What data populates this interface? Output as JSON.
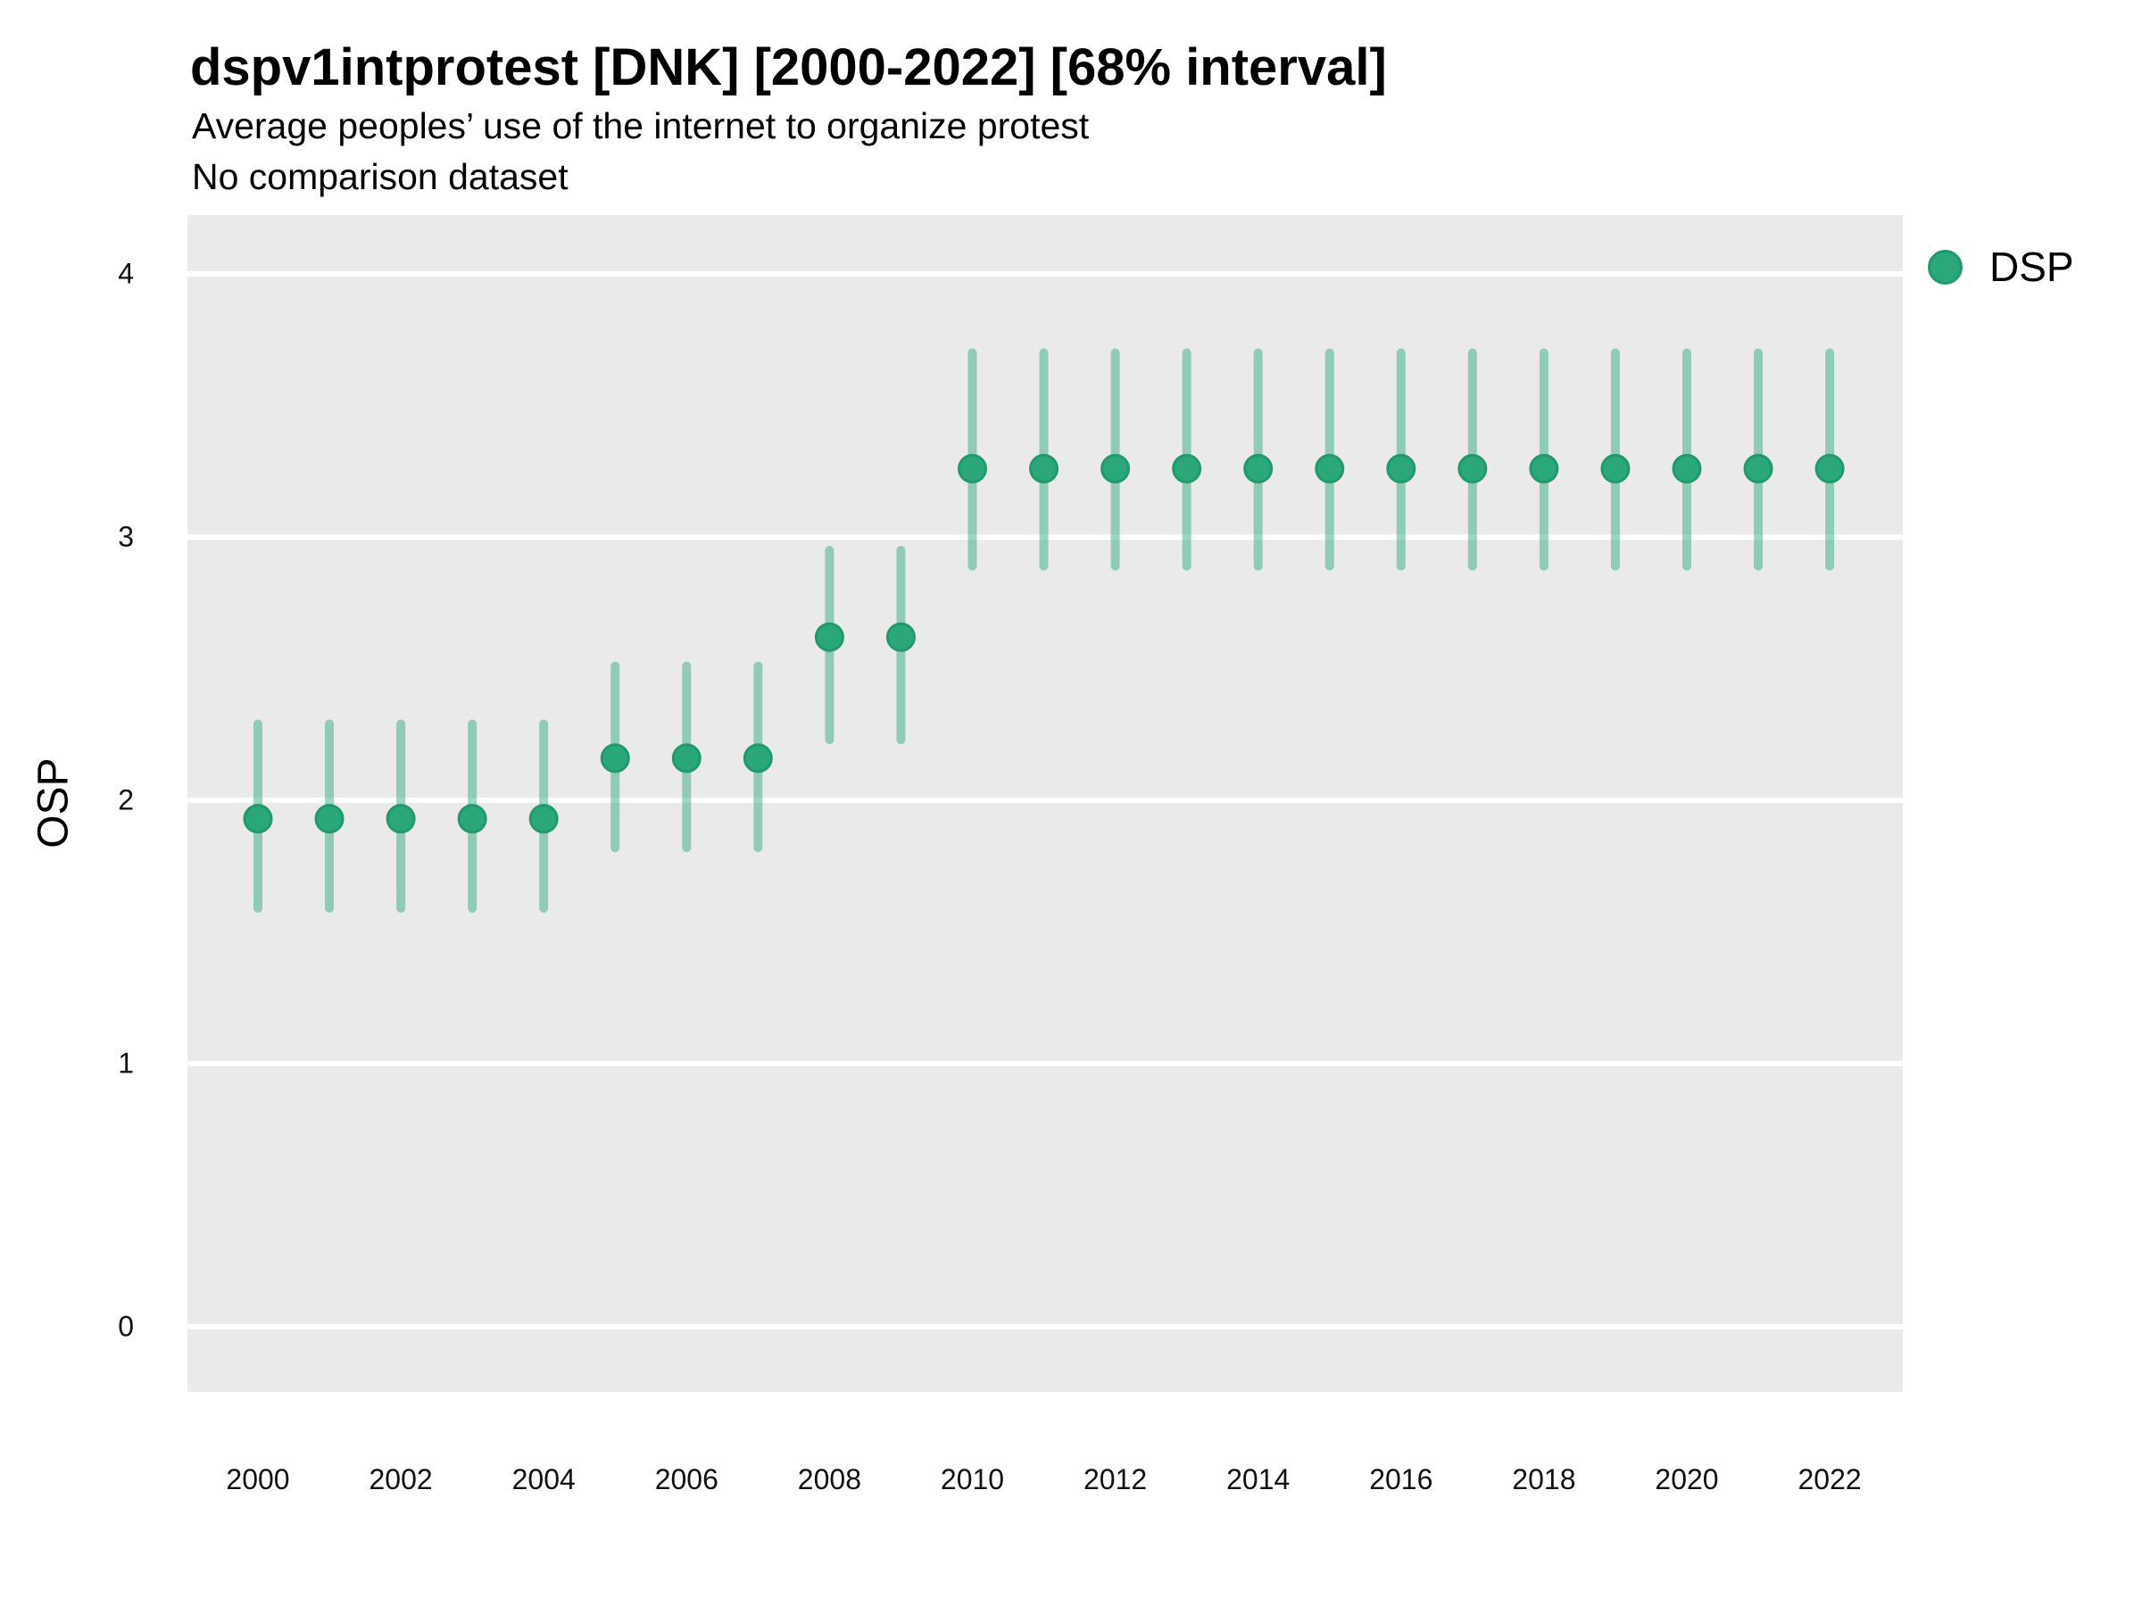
{
  "header": {
    "title": "dspv1intprotest [DNK] [2000-2022] [68% interval]",
    "subtitle": "Average peoples’ use of the internet to organize protest",
    "note": "No comparison dataset"
  },
  "legend": {
    "label": "DSP"
  },
  "colors": {
    "point_fill": "#2aa87a",
    "point_stroke": "#21996b",
    "interval_rgba": "rgba(42,168,122,0.47)",
    "panel_bg": "#eaeaea",
    "gridline": "#ffffff",
    "text": "#111111"
  },
  "chart_data": {
    "type": "pointrange",
    "title": "dspv1intprotest [DNK] [2000-2022] [68% interval]",
    "subtitle": "Average peoples’ use of the internet to organize protest",
    "note": "No comparison dataset",
    "interval": "68%",
    "xlabel": "",
    "ylabel": "OSP",
    "yticks": [
      0,
      1,
      2,
      3,
      4
    ],
    "ylim": [
      -0.25,
      4.22
    ],
    "xticks": [
      2000,
      2002,
      2004,
      2006,
      2008,
      2010,
      2012,
      2014,
      2016,
      2018,
      2020,
      2022
    ],
    "legend_position": "right",
    "grid": "major-horizontal-only",
    "series": [
      {
        "name": "DSP",
        "points": [
          {
            "year": 2000,
            "mean": 1.93,
            "lo": 1.59,
            "hi": 2.29
          },
          {
            "year": 2001,
            "mean": 1.93,
            "lo": 1.59,
            "hi": 2.29
          },
          {
            "year": 2002,
            "mean": 1.93,
            "lo": 1.59,
            "hi": 2.29
          },
          {
            "year": 2003,
            "mean": 1.93,
            "lo": 1.59,
            "hi": 2.29
          },
          {
            "year": 2004,
            "mean": 1.93,
            "lo": 1.59,
            "hi": 2.29
          },
          {
            "year": 2005,
            "mean": 2.16,
            "lo": 1.82,
            "hi": 2.51
          },
          {
            "year": 2006,
            "mean": 2.16,
            "lo": 1.82,
            "hi": 2.51
          },
          {
            "year": 2007,
            "mean": 2.16,
            "lo": 1.82,
            "hi": 2.51
          },
          {
            "year": 2008,
            "mean": 2.62,
            "lo": 2.23,
            "hi": 2.95
          },
          {
            "year": 2009,
            "mean": 2.62,
            "lo": 2.23,
            "hi": 2.95
          },
          {
            "year": 2010,
            "mean": 3.26,
            "lo": 2.89,
            "hi": 3.7
          },
          {
            "year": 2011,
            "mean": 3.26,
            "lo": 2.89,
            "hi": 3.7
          },
          {
            "year": 2012,
            "mean": 3.26,
            "lo": 2.89,
            "hi": 3.7
          },
          {
            "year": 2013,
            "mean": 3.26,
            "lo": 2.89,
            "hi": 3.7
          },
          {
            "year": 2014,
            "mean": 3.26,
            "lo": 2.89,
            "hi": 3.7
          },
          {
            "year": 2015,
            "mean": 3.26,
            "lo": 2.89,
            "hi": 3.7
          },
          {
            "year": 2016,
            "mean": 3.26,
            "lo": 2.89,
            "hi": 3.7
          },
          {
            "year": 2017,
            "mean": 3.26,
            "lo": 2.89,
            "hi": 3.7
          },
          {
            "year": 2018,
            "mean": 3.26,
            "lo": 2.89,
            "hi": 3.7
          },
          {
            "year": 2019,
            "mean": 3.26,
            "lo": 2.89,
            "hi": 3.7
          },
          {
            "year": 2020,
            "mean": 3.26,
            "lo": 2.89,
            "hi": 3.7
          },
          {
            "year": 2021,
            "mean": 3.26,
            "lo": 2.89,
            "hi": 3.7
          },
          {
            "year": 2022,
            "mean": 3.26,
            "lo": 2.89,
            "hi": 3.7
          }
        ]
      }
    ]
  }
}
